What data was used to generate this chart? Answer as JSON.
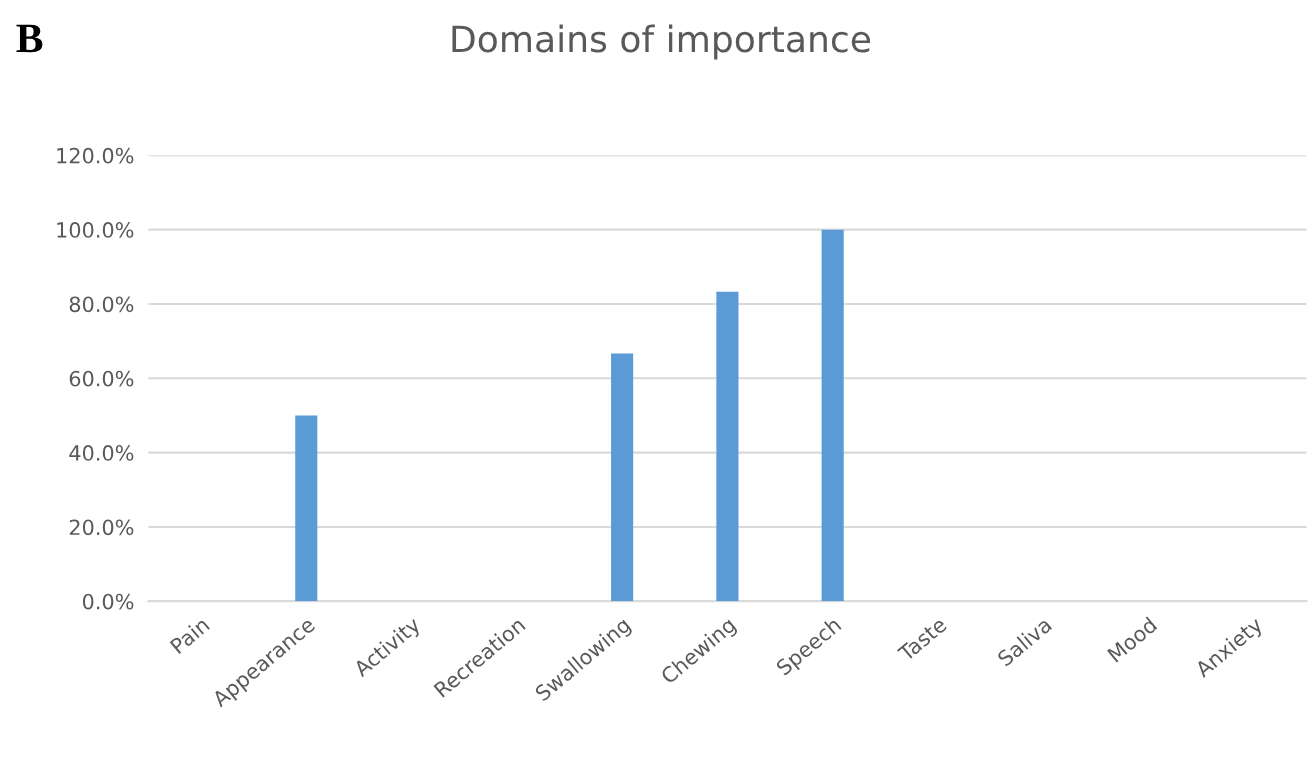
{
  "chart_data": {
    "type": "bar",
    "title": "Domains of importance",
    "annotations": [
      "B"
    ],
    "categories": [
      "Pain",
      "Appearance",
      "Activity",
      "Recreation",
      "Swallowing",
      "Chewing",
      "Speech",
      "Taste",
      "Saliva",
      "Mood",
      "Anxiety"
    ],
    "values": [
      0,
      50.0,
      0,
      0,
      66.7,
      83.3,
      100.0,
      0,
      0,
      0,
      0
    ],
    "color": "#5b9bd5",
    "ylim": [
      0,
      120
    ],
    "yticks": [
      {
        "value": 0,
        "label": "0.0%"
      },
      {
        "value": 20,
        "label": "20.0%"
      },
      {
        "value": 40,
        "label": "40.0%"
      },
      {
        "value": 60,
        "label": "60.0%"
      },
      {
        "value": 80,
        "label": "80.0%"
      },
      {
        "value": 100,
        "label": "100.0%"
      },
      {
        "value": 120,
        "label": "120.0%"
      }
    ],
    "grid": "y"
  }
}
